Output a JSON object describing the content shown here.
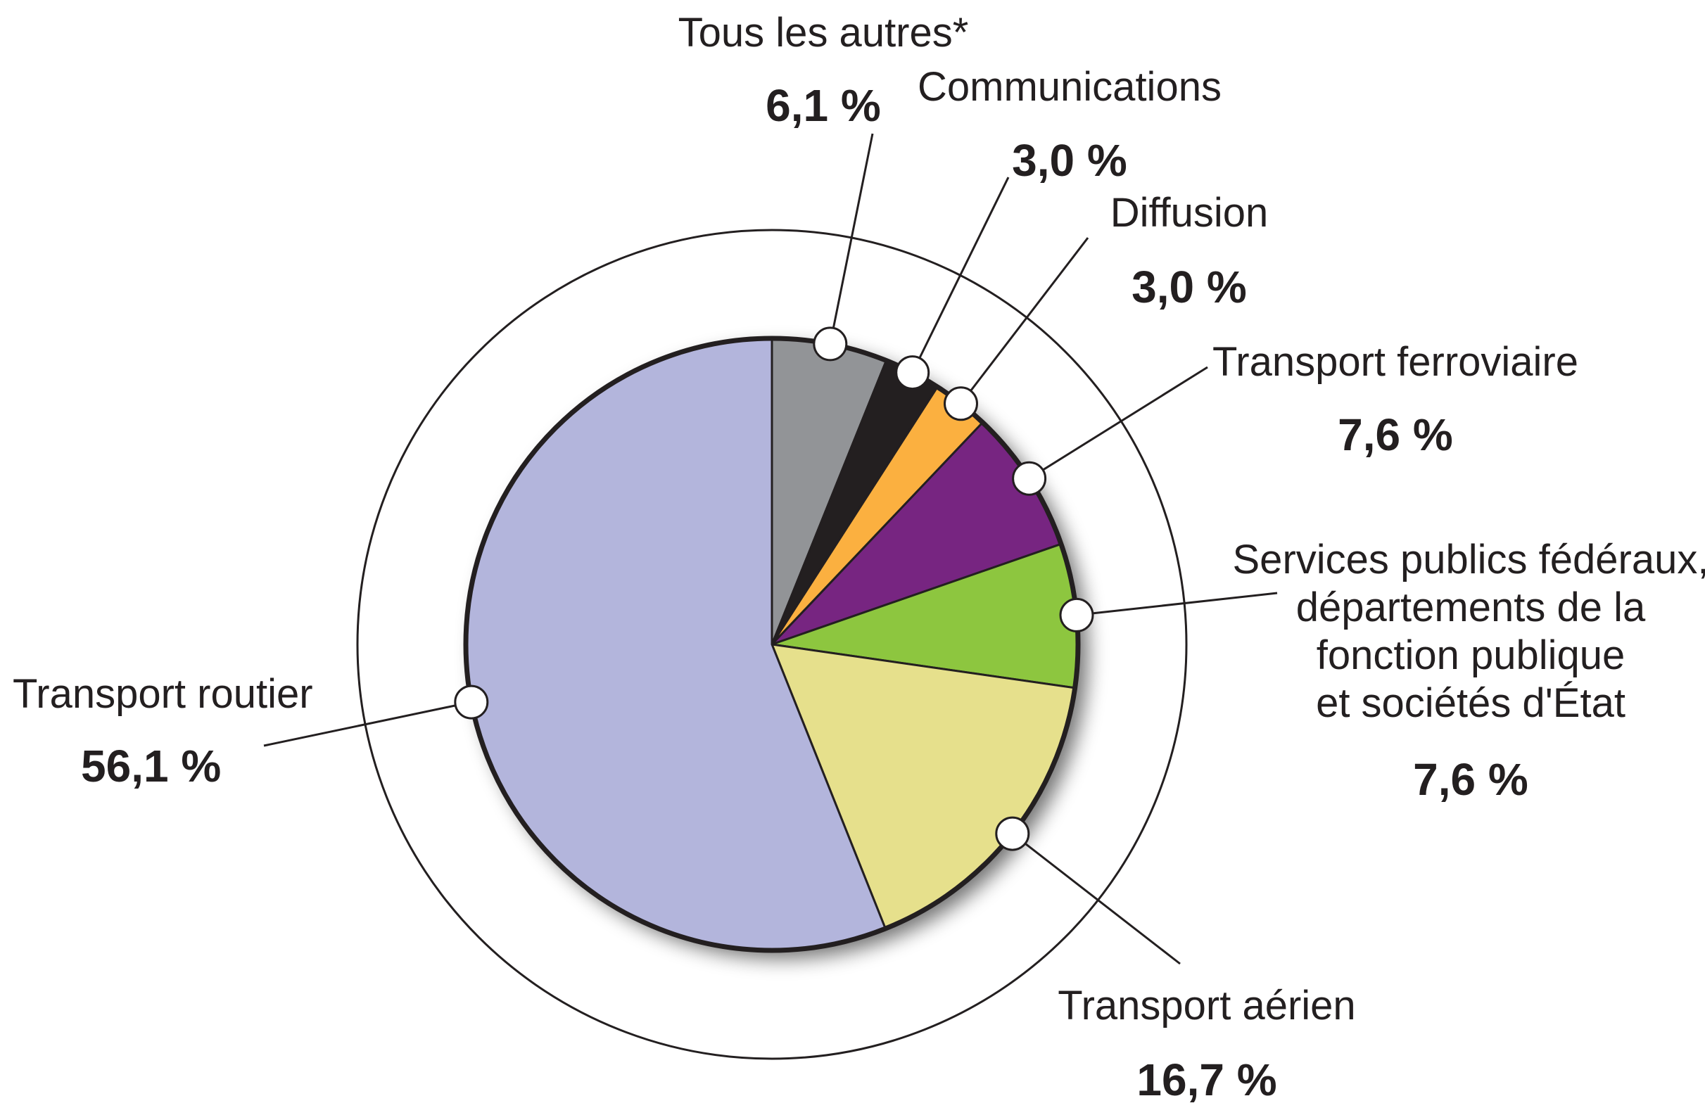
{
  "chart_data": {
    "type": "pie",
    "start_angle_deg": 0,
    "direction": "clockwise",
    "slices": [
      {
        "label": "Tous les autres*",
        "lines": [
          "Tous les autres*"
        ],
        "value": 6.1,
        "value_label": "6,1 %",
        "color": "#929497"
      },
      {
        "label": "Communications",
        "lines": [
          "Communications"
        ],
        "value": 3.0,
        "value_label": "3,0 %",
        "color": "#231f20"
      },
      {
        "label": "Diffusion",
        "lines": [
          "Diffusion"
        ],
        "value": 3.0,
        "value_label": "3,0 %",
        "color": "#fbb040"
      },
      {
        "label": "Transport ferroviaire",
        "lines": [
          "Transport ferroviaire"
        ],
        "value": 7.6,
        "value_label": "7,6 %",
        "color": "#772581"
      },
      {
        "label": "Services publics fédéraux, départements de la fonction publique et sociétés d'État",
        "lines": [
          "Services publics fédéraux,",
          "départements de la",
          "fonction publique",
          "et sociétés d'État"
        ],
        "value": 7.6,
        "value_label": "7,6 %",
        "color": "#8dc63f"
      },
      {
        "label": "Transport aérien",
        "lines": [
          "Transport aérien"
        ],
        "value": 16.7,
        "value_label": "16,7 %",
        "color": "#e6e08c"
      },
      {
        "label": "Transport routier",
        "lines": [
          "Transport routier"
        ],
        "value": 56.1,
        "value_label": "56,1 %",
        "color": "#b3b5dc"
      }
    ]
  }
}
